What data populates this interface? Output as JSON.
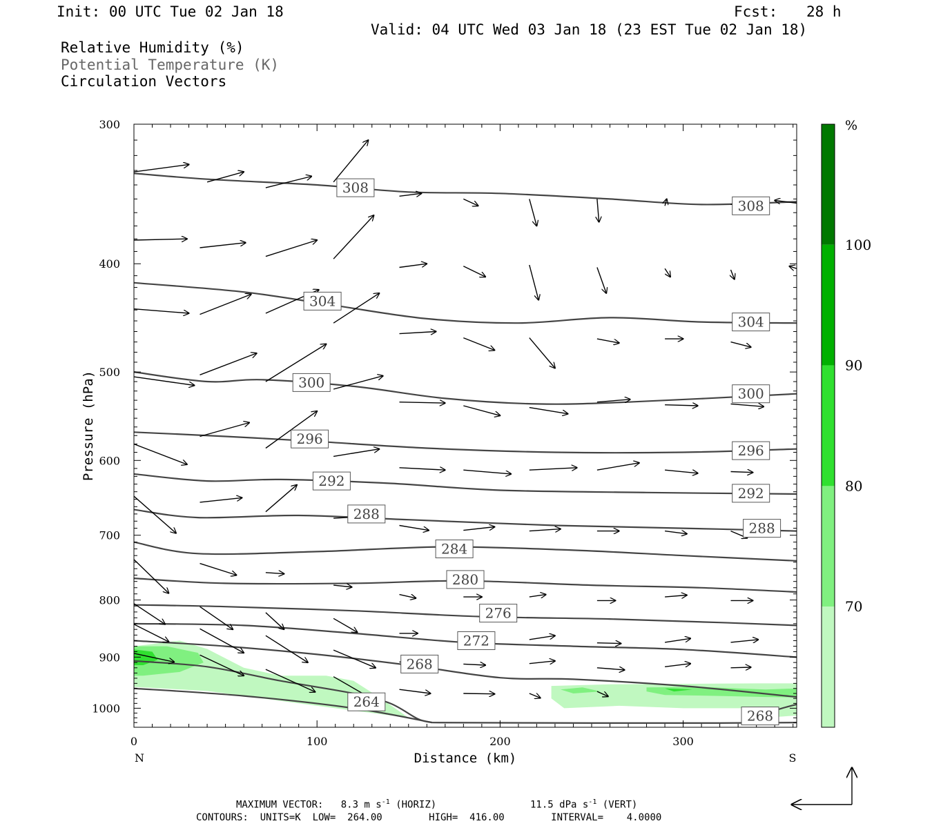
{
  "header": {
    "init": "Init: 00 UTC Tue 02 Jan 18",
    "fcst_label": "Fcst:",
    "fcst_value": "28 h",
    "valid": "Valid: 04 UTC Wed 03 Jan 18 (23 EST Tue 02 Jan 18)",
    "legend": [
      "Relative Humidity (%)",
      "Potential Temperature (K)",
      "Circulation Vectors"
    ]
  },
  "chart_data": {
    "type": "cross-section",
    "xlabel": "Distance (km)",
    "ylabel": "Pressure (hPa)",
    "xlim": [
      0,
      362
    ],
    "ylim": [
      1040,
      300
    ],
    "y_scale": "log",
    "x_ticks": [
      "0",
      "100",
      "200",
      "300"
    ],
    "y_ticks": [
      "300",
      "400",
      "500",
      "600",
      "700",
      "800",
      "900",
      "1000"
    ],
    "x_end_labels": {
      "left": "N",
      "right": "S"
    },
    "colorbar": {
      "unit": "%",
      "levels": [
        "70",
        "80",
        "90",
        "100"
      ],
      "colors": [
        "#ffffff",
        "#c0f8c0",
        "#80f080",
        "#30e030",
        "#00b000",
        "#007800"
      ]
    },
    "theta_contours": [
      {
        "label": "308",
        "points": [
          [
            0,
            332
          ],
          [
            40,
            336
          ],
          [
            100,
            340
          ],
          [
            150,
            345
          ],
          [
            200,
            346
          ],
          [
            260,
            350
          ],
          [
            310,
            354
          ],
          [
            362,
            352
          ]
        ],
        "labels_at": [
          [
            121,
            342
          ],
          [
            337,
            355
          ]
        ]
      },
      {
        "label": "304",
        "points": [
          [
            0,
            416
          ],
          [
            60,
            424
          ],
          [
            110,
            436
          ],
          [
            160,
            448
          ],
          [
            210,
            452
          ],
          [
            260,
            447
          ],
          [
            310,
            451
          ],
          [
            362,
            452
          ]
        ],
        "labels_at": [
          [
            103,
            432
          ],
          [
            337,
            451
          ]
        ]
      },
      {
        "label": "300",
        "points": [
          [
            0,
            500
          ],
          [
            40,
            510
          ],
          [
            70,
            508
          ],
          [
            120,
            515
          ],
          [
            170,
            528
          ],
          [
            220,
            534
          ],
          [
            270,
            532
          ],
          [
            362,
            523
          ]
        ],
        "labels_at": [
          [
            97,
            511
          ],
          [
            337,
            523
          ]
        ]
      },
      {
        "label": "296",
        "points": [
          [
            0,
            566
          ],
          [
            50,
            571
          ],
          [
            100,
            577
          ],
          [
            160,
            585
          ],
          [
            230,
            590
          ],
          [
            300,
            590
          ],
          [
            362,
            586
          ]
        ],
        "labels_at": [
          [
            96,
            574
          ],
          [
            337,
            588
          ]
        ]
      },
      {
        "label": "292",
        "points": [
          [
            0,
            617
          ],
          [
            40,
            626
          ],
          [
            80,
            624
          ],
          [
            140,
            629
          ],
          [
            200,
            638
          ],
          [
            280,
            641
          ],
          [
            362,
            643
          ]
        ],
        "labels_at": [
          [
            108,
            626
          ],
          [
            337,
            642
          ]
        ]
      },
      {
        "label": "288",
        "points": [
          [
            0,
            664
          ],
          [
            35,
            675
          ],
          [
            90,
            672
          ],
          [
            150,
            678
          ],
          [
            230,
            686
          ],
          [
            300,
            690
          ],
          [
            362,
            694
          ]
        ],
        "labels_at": [
          [
            127,
            670
          ],
          [
            343,
            690
          ]
        ]
      },
      {
        "label": "284",
        "points": [
          [
            0,
            710
          ],
          [
            35,
            727
          ],
          [
            100,
            724
          ],
          [
            170,
            717
          ],
          [
            240,
            722
          ],
          [
            300,
            730
          ],
          [
            362,
            738
          ]
        ],
        "labels_at": [
          [
            175,
            720
          ],
          [
            175,
            720
          ]
        ]
      },
      {
        "label": "280",
        "points": [
          [
            0,
            765
          ],
          [
            50,
            773
          ],
          [
            120,
            773
          ],
          [
            180,
            769
          ],
          [
            250,
            776
          ],
          [
            310,
            780
          ],
          [
            362,
            787
          ]
        ],
        "labels_at": [
          [
            181,
            767
          ],
          [
            181,
            767
          ]
        ]
      },
      {
        "label": "276",
        "points": [
          [
            0,
            808
          ],
          [
            50,
            811
          ],
          [
            120,
            818
          ],
          [
            190,
            828
          ],
          [
            260,
            832
          ],
          [
            320,
            838
          ],
          [
            362,
            843
          ]
        ],
        "labels_at": [
          [
            199,
            822
          ],
          [
            199,
            822
          ]
        ]
      },
      {
        "label": "272",
        "points": [
          [
            0,
            840
          ],
          [
            60,
            843
          ],
          [
            120,
            857
          ],
          [
            180,
            873
          ],
          [
            240,
            880
          ],
          [
            300,
            886
          ],
          [
            362,
            900
          ]
        ],
        "labels_at": [
          [
            187,
            870
          ],
          [
            187,
            870
          ]
        ]
      },
      {
        "label": "268",
        "points": [
          [
            0,
            870
          ],
          [
            50,
            880
          ],
          [
            100,
            895
          ],
          [
            150,
            915
          ],
          [
            200,
            939
          ],
          [
            240,
            942
          ],
          [
            300,
            955
          ],
          [
            362,
            977
          ]
        ],
        "labels_at": [
          [
            156,
            913
          ],
          [
            156,
            913
          ]
        ]
      },
      {
        "label": "264",
        "points": [
          [
            0,
            907
          ],
          [
            40,
            918
          ],
          [
            80,
            945
          ],
          [
            120,
            970
          ],
          [
            140,
            990
          ],
          [
            155,
            1022
          ],
          [
            163,
            1030
          ]
        ],
        "labels_at": [
          [
            127,
            987
          ],
          [
            127,
            987
          ]
        ]
      }
    ],
    "vectors": [
      [
        0,
        331,
        30,
        326
      ],
      [
        40,
        338,
        60,
        331
      ],
      [
        72,
        342,
        97,
        334
      ],
      [
        109,
        338,
        128,
        310
      ],
      [
        145,
        348,
        157,
        346
      ],
      [
        180,
        350,
        188,
        355
      ],
      [
        216,
        350,
        220,
        370
      ],
      [
        253,
        350,
        254,
        367
      ],
      [
        290,
        355,
        291,
        350
      ],
      [
        326,
        354,
        338,
        351
      ],
      [
        362,
        353,
        350,
        351
      ],
      [
        0,
        381,
        29,
        380
      ],
      [
        36,
        387,
        61,
        383
      ],
      [
        72,
        394,
        100,
        381
      ],
      [
        109,
        396,
        131,
        362
      ],
      [
        145,
        403,
        160,
        400
      ],
      [
        180,
        402,
        192,
        411
      ],
      [
        216,
        401,
        221,
        431
      ],
      [
        253,
        403,
        258,
        425
      ],
      [
        290,
        404,
        293,
        411
      ],
      [
        326,
        405,
        328,
        413
      ],
      [
        362,
        404,
        358,
        402
      ],
      [
        0,
        439,
        30,
        443
      ],
      [
        36,
        444,
        64,
        426
      ],
      [
        72,
        443,
        101,
        422
      ],
      [
        109,
        452,
        134,
        425
      ],
      [
        145,
        462,
        165,
        460
      ],
      [
        180,
        466,
        197,
        478
      ],
      [
        216,
        466,
        230,
        496
      ],
      [
        253,
        467,
        265,
        471
      ],
      [
        290,
        467,
        300,
        467
      ],
      [
        326,
        470,
        337,
        475
      ],
      [
        0,
        505,
        33,
        514
      ],
      [
        36,
        503,
        67,
        481
      ],
      [
        72,
        510,
        105,
        472
      ],
      [
        109,
        518,
        136,
        504
      ],
      [
        145,
        532,
        170,
        533
      ],
      [
        180,
        536,
        200,
        547
      ],
      [
        216,
        538,
        237,
        545
      ],
      [
        253,
        532,
        271,
        529
      ],
      [
        290,
        535,
        308,
        536
      ],
      [
        326,
        534,
        344,
        537
      ],
      [
        0,
        580,
        29,
        605
      ],
      [
        36,
        571,
        63,
        555
      ],
      [
        72,
        585,
        100,
        542
      ],
      [
        109,
        595,
        134,
        586
      ],
      [
        145,
        609,
        170,
        612
      ],
      [
        180,
        612,
        206,
        617
      ],
      [
        216,
        612,
        242,
        609
      ],
      [
        253,
        612,
        276,
        603
      ],
      [
        290,
        612,
        308,
        616
      ],
      [
        326,
        614,
        338,
        615
      ],
      [
        0,
        646,
        23,
        697
      ],
      [
        36,
        654,
        59,
        648
      ],
      [
        72,
        667,
        89,
        631
      ],
      [
        109,
        676,
        123,
        674
      ],
      [
        145,
        686,
        161,
        693
      ],
      [
        180,
        693,
        197,
        688
      ],
      [
        216,
        694,
        233,
        691
      ],
      [
        253,
        694,
        265,
        694
      ],
      [
        290,
        694,
        302,
        698
      ],
      [
        326,
        694,
        335,
        704
      ],
      [
        0,
        736,
        19,
        789
      ],
      [
        36,
        742,
        56,
        760
      ],
      [
        72,
        756,
        82,
        758
      ],
      [
        109,
        776,
        119,
        779
      ],
      [
        145,
        791,
        154,
        797
      ],
      [
        180,
        795,
        190,
        795
      ],
      [
        216,
        795,
        225,
        791
      ],
      [
        253,
        801,
        263,
        801
      ],
      [
        290,
        795,
        302,
        792
      ],
      [
        326,
        801,
        338,
        801
      ],
      [
        0,
        806,
        17,
        841
      ],
      [
        36,
        811,
        54,
        850
      ],
      [
        72,
        821,
        82,
        850
      ],
      [
        109,
        831,
        122,
        855
      ],
      [
        145,
        857,
        155,
        857
      ],
      [
        180,
        866,
        191,
        869
      ],
      [
        216,
        868,
        230,
        861
      ],
      [
        253,
        874,
        266,
        875
      ],
      [
        290,
        873,
        304,
        866
      ],
      [
        326,
        873,
        341,
        868
      ],
      [
        0,
        841,
        19,
        872
      ],
      [
        36,
        849,
        60,
        892
      ],
      [
        72,
        861,
        95,
        910
      ],
      [
        109,
        887,
        132,
        920
      ],
      [
        145,
        909,
        160,
        907
      ],
      [
        180,
        913,
        192,
        915
      ],
      [
        216,
        912,
        230,
        907
      ],
      [
        253,
        920,
        268,
        924
      ],
      [
        290,
        918,
        304,
        912
      ],
      [
        326,
        920,
        337,
        919
      ],
      [
        0,
        893,
        22,
        909
      ],
      [
        36,
        896,
        60,
        935
      ],
      [
        72,
        923,
        99,
        967
      ],
      [
        109,
        937,
        132,
        985
      ],
      [
        145,
        962,
        162,
        970
      ],
      [
        180,
        970,
        197,
        971
      ],
      [
        216,
        970,
        222,
        979
      ],
      [
        253,
        966,
        259,
        976
      ]
    ],
    "rh_regions": [
      {
        "level": "70-80",
        "points": [
          [
            0,
            880
          ],
          [
            25,
            870
          ],
          [
            40,
            885
          ],
          [
            60,
            920
          ],
          [
            80,
            935
          ],
          [
            105,
            935
          ],
          [
            120,
            945
          ],
          [
            135,
            980
          ],
          [
            150,
            1020
          ],
          [
            120,
            1005
          ],
          [
            80,
            985
          ],
          [
            40,
            965
          ],
          [
            0,
            957
          ]
        ]
      },
      {
        "level": "80-90",
        "points": [
          [
            0,
            880
          ],
          [
            18,
            880
          ],
          [
            35,
            892
          ],
          [
            38,
            910
          ],
          [
            25,
            928
          ],
          [
            5,
            935
          ],
          [
            0,
            935
          ]
        ]
      },
      {
        "level": "90-100",
        "points": [
          [
            0,
            886
          ],
          [
            10,
            890
          ],
          [
            13,
            905
          ],
          [
            5,
            915
          ],
          [
            0,
            915
          ]
        ]
      },
      {
        "level": "70-80",
        "points": [
          [
            228,
            955
          ],
          [
            260,
            952
          ],
          [
            300,
            951
          ],
          [
            340,
            950
          ],
          [
            362,
            950
          ],
          [
            362,
            1015
          ],
          [
            345,
            1020
          ],
          [
            335,
            1000
          ],
          [
            300,
            1000
          ],
          [
            265,
            995
          ],
          [
            235,
            1000
          ],
          [
            228,
            980
          ]
        ]
      },
      {
        "level": "80-90",
        "points": [
          [
            233,
            962
          ],
          [
            245,
            958
          ],
          [
            255,
            966
          ],
          [
            240,
            970
          ]
        ]
      },
      {
        "level": "80-90",
        "points": [
          [
            280,
            958
          ],
          [
            310,
            957
          ],
          [
            330,
            960
          ],
          [
            345,
            962
          ],
          [
            362,
            960
          ],
          [
            362,
            978
          ],
          [
            345,
            977
          ],
          [
            320,
            975
          ],
          [
            290,
            973
          ],
          [
            280,
            966
          ]
        ]
      },
      {
        "level": "90-100",
        "points": [
          [
            290,
            960
          ],
          [
            305,
            962
          ],
          [
            295,
            966
          ]
        ]
      }
    ]
  },
  "footer": {
    "line1_a": "MAXIMUM VECTOR:   8.3 m s",
    "line1_a_sup": "-1",
    "line1_b": " (HORIZ)",
    "line1_c": "11.5 dPa s",
    "line1_c_sup": "-1",
    "line1_d": " (VERT)",
    "line2": "CONTOURS:  UNITS=K  LOW=  264.00        HIGH=  416.00        INTERVAL=    4.0000"
  }
}
